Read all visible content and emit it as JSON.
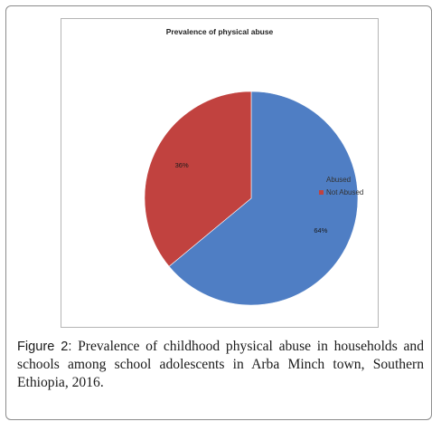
{
  "chart_data": {
    "type": "pie",
    "title": "Prevalence of physical abuse",
    "categories": [
      "Abused",
      "Not Abused"
    ],
    "values": [
      64,
      36
    ],
    "labels": [
      "64%",
      "36%"
    ],
    "colors": [
      "#4f7ec4",
      "#c1423f"
    ],
    "legend_position": "right"
  },
  "caption": {
    "label": "Figure 2:",
    "text": " Prevalence of childhood physical abuse in households and schools among school adolescents in Arba Minch town, Southern Ethiopia, 2016."
  }
}
